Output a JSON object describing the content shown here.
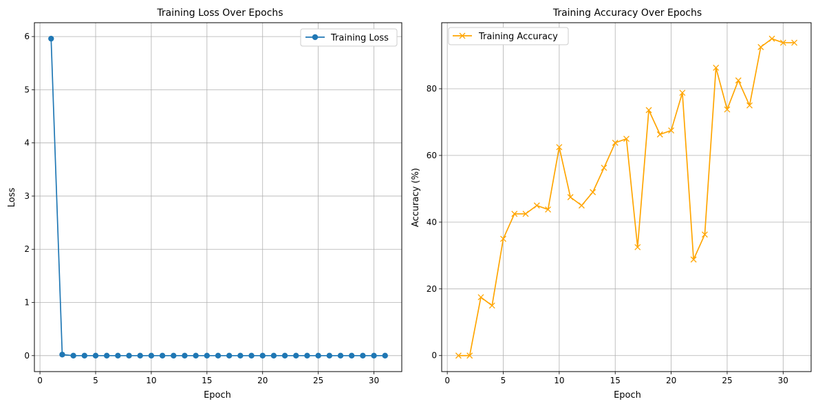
{
  "chart_data": [
    {
      "type": "line",
      "title": "Training Loss Over Epochs",
      "xlabel": "Epoch",
      "ylabel": "Loss",
      "xlim": [
        -0.5,
        32.5
      ],
      "ylim": [
        -0.3,
        6.26
      ],
      "xticks": [
        0,
        5,
        10,
        15,
        20,
        25,
        30
      ],
      "yticks": [
        0,
        1,
        2,
        3,
        4,
        5,
        6
      ],
      "grid": true,
      "legend_position": "top-right",
      "series": [
        {
          "name": "Training Loss",
          "color": "#1f77b4",
          "marker": "circle",
          "x": [
            1,
            2,
            3,
            4,
            5,
            6,
            7,
            8,
            9,
            10,
            11,
            12,
            13,
            14,
            15,
            16,
            17,
            18,
            19,
            20,
            21,
            22,
            23,
            24,
            25,
            26,
            27,
            28,
            29,
            30,
            31
          ],
          "y": [
            5.96,
            0.02,
            0,
            0,
            0,
            0,
            0,
            0,
            0,
            0,
            0,
            0,
            0,
            0,
            0,
            0,
            0,
            0,
            0,
            0,
            0,
            0,
            0,
            0,
            0,
            0,
            0,
            0,
            0,
            0,
            0
          ]
        }
      ]
    },
    {
      "type": "line",
      "title": "Training Accuracy Over Epochs",
      "xlabel": "Epoch",
      "ylabel": "Accuracy (%)",
      "xlim": [
        -0.5,
        32.5
      ],
      "ylim": [
        -4.8,
        99.8
      ],
      "xticks": [
        0,
        5,
        10,
        15,
        20,
        25,
        30
      ],
      "yticks": [
        0,
        20,
        40,
        60,
        80
      ],
      "grid": true,
      "legend_position": "top-left",
      "series": [
        {
          "name": "Training Accuracy",
          "color": "#ffa500",
          "marker": "x",
          "x": [
            1,
            2,
            3,
            4,
            5,
            6,
            7,
            8,
            9,
            10,
            11,
            12,
            13,
            14,
            15,
            16,
            17,
            18,
            19,
            20,
            21,
            22,
            23,
            24,
            25,
            26,
            27,
            28,
            29,
            30,
            31
          ],
          "y": [
            0,
            0,
            17.5,
            15,
            35,
            42.5,
            42.5,
            45,
            43.8,
            62.5,
            47.5,
            45,
            49,
            56.3,
            63.8,
            65,
            32.5,
            73.6,
            66.3,
            67.5,
            78.8,
            28.8,
            36.3,
            86.3,
            73.8,
            82.5,
            75,
            92.5,
            95,
            93.8,
            93.8
          ]
        }
      ]
    }
  ]
}
